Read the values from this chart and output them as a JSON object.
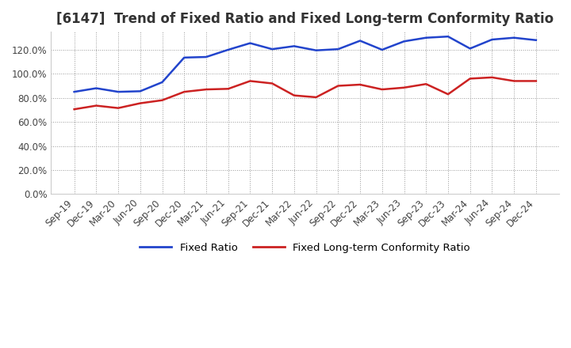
{
  "title": "[6147]  Trend of Fixed Ratio and Fixed Long-term Conformity Ratio",
  "x_labels": [
    "Sep-19",
    "Dec-19",
    "Mar-20",
    "Jun-20",
    "Sep-20",
    "Dec-20",
    "Mar-21",
    "Jun-21",
    "Sep-21",
    "Dec-21",
    "Mar-22",
    "Jun-22",
    "Sep-22",
    "Dec-22",
    "Mar-23",
    "Jun-23",
    "Sep-23",
    "Dec-23",
    "Mar-24",
    "Jun-24",
    "Sep-24",
    "Dec-24"
  ],
  "fixed_ratio": [
    85.0,
    88.0,
    85.0,
    85.5,
    93.0,
    113.5,
    114.0,
    120.0,
    125.5,
    120.5,
    123.0,
    119.5,
    120.5,
    127.5,
    120.0,
    127.0,
    130.0,
    131.0,
    121.0,
    128.5,
    130.0,
    128.0
  ],
  "fixed_lt_ratio": [
    70.5,
    73.5,
    71.5,
    75.5,
    78.0,
    85.0,
    87.0,
    87.5,
    94.0,
    92.0,
    82.0,
    80.5,
    90.0,
    91.0,
    87.0,
    88.5,
    91.5,
    83.0,
    96.0,
    97.0,
    94.0,
    94.0
  ],
  "fixed_ratio_color": "#2244cc",
  "fixed_lt_ratio_color": "#cc2222",
  "bg_color": "#ffffff",
  "plot_bg_color": "#ffffff",
  "ylim": [
    0,
    135
  ],
  "yticks": [
    0,
    20,
    40,
    60,
    80,
    100,
    120
  ],
  "ytick_labels": [
    "0.0%",
    "20.0%",
    "40.0%",
    "60.0%",
    "80.0%",
    "100.0%",
    "120.0%"
  ],
  "legend_fixed_ratio": "Fixed Ratio",
  "legend_fixed_lt_ratio": "Fixed Long-term Conformity Ratio",
  "title_fontsize": 12,
  "axis_fontsize": 8.5,
  "legend_fontsize": 9.5,
  "line_width": 1.8,
  "grid_color": "#999999",
  "grid_style": ":"
}
